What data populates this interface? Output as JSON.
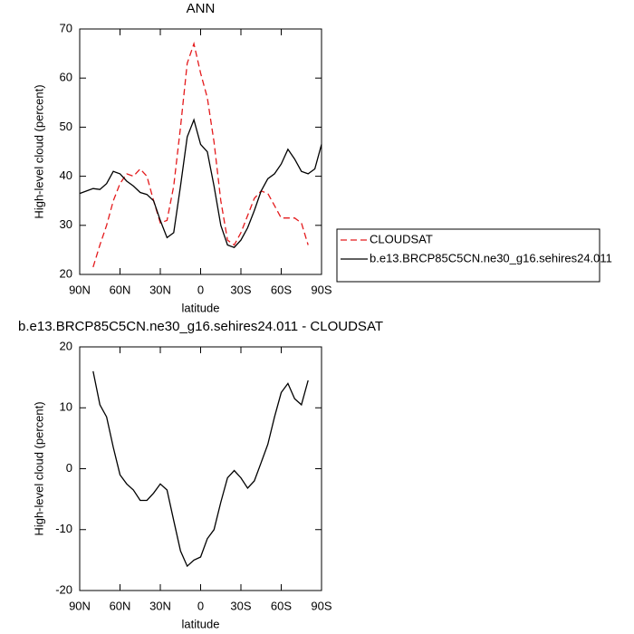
{
  "chart_data": [
    {
      "type": "line",
      "title": "ANN",
      "xlabel": "latitude",
      "ylabel": "High-level cloud (percent)",
      "x": [
        90,
        85,
        80,
        75,
        70,
        65,
        60,
        55,
        50,
        45,
        40,
        35,
        30,
        25,
        20,
        15,
        10,
        5,
        0,
        -5,
        -10,
        -15,
        -20,
        -25,
        -30,
        -35,
        -40,
        -45,
        -50,
        -55,
        -60,
        -65,
        -70,
        -75,
        -80,
        -85,
        -90
      ],
      "series": [
        {
          "name": "CLOUDSAT",
          "color": "#e41a1c",
          "dash": true,
          "values": [
            null,
            null,
            21.5,
            26,
            30,
            35,
            38.5,
            40.5,
            40,
            41.5,
            40,
            35,
            30.5,
            31,
            38,
            50,
            63,
            67,
            61,
            56,
            47,
            35,
            27,
            26,
            28.5,
            32,
            35.5,
            37,
            36.5,
            34,
            31.5,
            31.5,
            31.5,
            30.5,
            26,
            null,
            null
          ]
        },
        {
          "name": "b.e13.BRCP85C5CN.ne30_g16.sehires24.011",
          "color": "#000000",
          "dash": false,
          "values": [
            36.5,
            37,
            37.5,
            37.3,
            38.5,
            41,
            40.5,
            39,
            38,
            36.7,
            36.3,
            35,
            31,
            27.5,
            28.5,
            38,
            48,
            51.5,
            46.5,
            45,
            38,
            30,
            26,
            25.5,
            27,
            29.5,
            33,
            37,
            39.5,
            40.5,
            42.5,
            45.5,
            43.5,
            41,
            40.5,
            41.5,
            46.5
          ]
        }
      ],
      "xlim": [
        90,
        -90
      ],
      "xticks": [
        {
          "value": 90,
          "label": "90N"
        },
        {
          "value": 60,
          "label": "60N"
        },
        {
          "value": 30,
          "label": "30N"
        },
        0,
        {
          "value": -30,
          "label": "30S"
        },
        {
          "value": -60,
          "label": "60S"
        },
        {
          "value": -90,
          "label": "90S"
        }
      ],
      "ylim": [
        20,
        70
      ],
      "yticks": [
        20,
        30,
        40,
        50,
        60,
        70
      ],
      "legend": "outside-right"
    },
    {
      "type": "line",
      "title": "b.e13.BRCP85C5CN.ne30_g16.sehires24.011 - CLOUDSAT",
      "xlabel": "latitude",
      "ylabel": "High-level cloud (percent)",
      "x": [
        90,
        85,
        80,
        75,
        70,
        65,
        60,
        55,
        50,
        45,
        40,
        35,
        30,
        25,
        20,
        15,
        10,
        5,
        0,
        -5,
        -10,
        -15,
        -20,
        -25,
        -30,
        -35,
        -40,
        -45,
        -50,
        -55,
        -60,
        -65,
        -70,
        -75,
        -80,
        -85,
        -90
      ],
      "series": [
        {
          "color": "#000000",
          "dash": false,
          "values": [
            null,
            null,
            16,
            10.5,
            8.5,
            3.5,
            -1,
            -2.5,
            -3.5,
            -5.2,
            -5.2,
            -4,
            -2.5,
            -3.5,
            -8.5,
            -13.5,
            -16,
            -15,
            -14.5,
            -11.5,
            -10,
            -5.5,
            -1.5,
            -0.3,
            -1.5,
            -3.2,
            -2,
            1,
            4,
            8.5,
            12.5,
            14,
            11.5,
            10.5,
            14.5,
            null,
            null
          ]
        }
      ],
      "xlim": [
        90,
        -90
      ],
      "xticks": [
        {
          "value": 90,
          "label": "90N"
        },
        {
          "value": 60,
          "label": "60N"
        },
        {
          "value": 30,
          "label": "30N"
        },
        0,
        {
          "value": -30,
          "label": "30S"
        },
        {
          "value": -60,
          "label": "60S"
        },
        {
          "value": -90,
          "label": "90S"
        }
      ],
      "ylim": [
        -20,
        20
      ],
      "yticks": [
        -20,
        -10,
        0,
        10,
        20
      ]
    }
  ]
}
